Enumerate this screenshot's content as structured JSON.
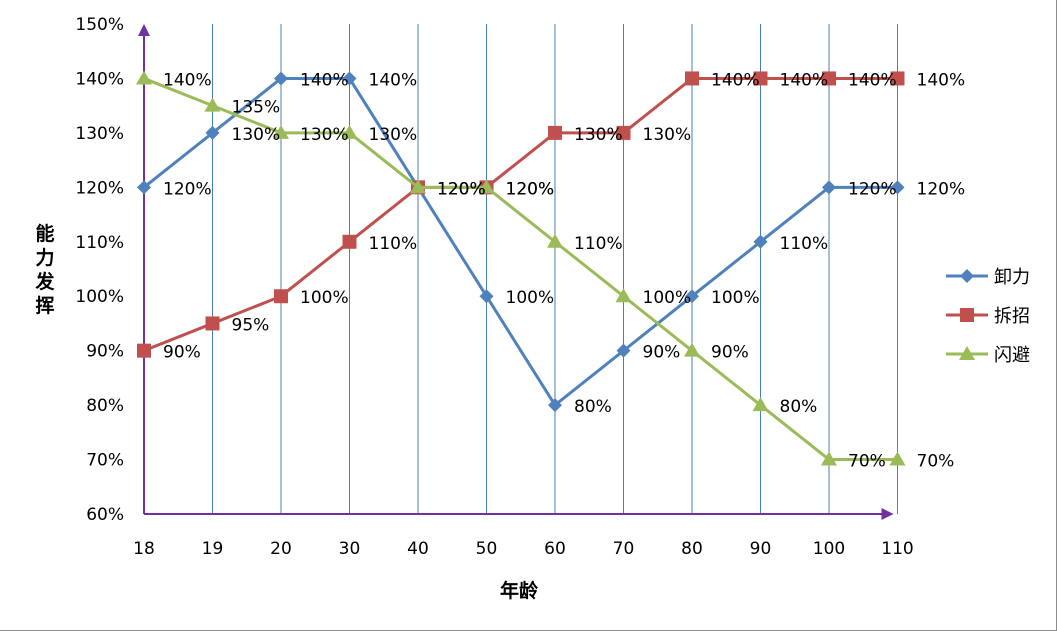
{
  "chart_data": {
    "type": "line",
    "categories": [
      "18",
      "19",
      "20",
      "30",
      "40",
      "50",
      "60",
      "70",
      "80",
      "90",
      "100",
      "110"
    ],
    "series": [
      {
        "name": "卸力",
        "color": "#4F81BD",
        "marker": "diamond",
        "values": [
          120,
          130,
          140,
          140,
          120,
          100,
          80,
          90,
          100,
          110,
          120,
          120
        ],
        "labels": [
          "120%",
          "130%",
          "140%",
          "140%",
          "",
          "100%",
          "80%",
          "90%",
          "100%",
          "110%",
          "120%",
          "120%"
        ]
      },
      {
        "name": "拆招",
        "color": "#C0504D",
        "marker": "square",
        "values": [
          90,
          95,
          100,
          110,
          120,
          120,
          130,
          130,
          140,
          140,
          140,
          140
        ],
        "labels": [
          "90%",
          "95%",
          "100%",
          "110%",
          "120%",
          "120%",
          "130%",
          "130%",
          "140%",
          "140%",
          "140%",
          "140%"
        ]
      },
      {
        "name": "闪避",
        "color": "#9BBB59",
        "marker": "triangle",
        "values": [
          140,
          135,
          130,
          130,
          120,
          120,
          110,
          100,
          90,
          80,
          70,
          70
        ],
        "labels": [
          "140%",
          "135%",
          "130%",
          "130%",
          "120%",
          "120%",
          "110%",
          "100%",
          "90%",
          "80%",
          "70%",
          "70%"
        ]
      }
    ],
    "y_ticks": [
      "60%",
      "70%",
      "80%",
      "90%",
      "100%",
      "110%",
      "120%",
      "130%",
      "140%",
      "150%"
    ],
    "ylim": [
      60,
      150
    ],
    "xlabel": "年龄",
    "ylabel": "能力发挥",
    "grid": "vertical",
    "legend_position": "right",
    "axis_color": "#7030A0",
    "grid_color": "#4A7EBB"
  }
}
